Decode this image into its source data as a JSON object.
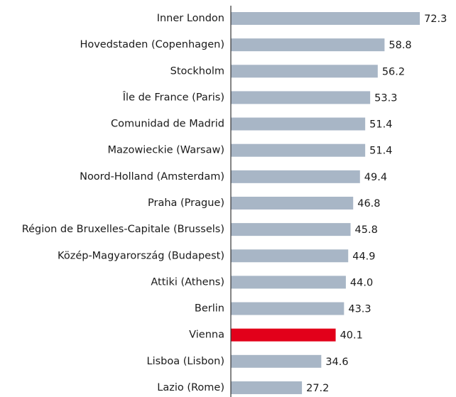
{
  "chart_data": {
    "type": "hbar",
    "categories": [
      "Inner London",
      "Hovedstaden (Copenhagen)",
      "Stockholm",
      "Île de France (Paris)",
      "Comunidad de Madrid",
      "Mazowieckie (Warsaw)",
      "Noord-Holland (Amsterdam)",
      "Praha (Prague)",
      "Région de Bruxelles-Capitale (Brussels)",
      "Közép-Magyarország (Budapest)",
      "Attiki (Athens)",
      "Berlin",
      "Vienna",
      "Lisboa (Lisbon)",
      "Lazio (Rome)"
    ],
    "values": [
      72.3,
      58.8,
      56.2,
      53.3,
      51.4,
      51.4,
      49.4,
      46.8,
      45.8,
      44.9,
      44.0,
      43.3,
      40.1,
      34.6,
      27.2
    ],
    "value_labels": [
      "72.3",
      "58.8",
      "56.2",
      "53.3",
      "51.4",
      "51.4",
      "49.4",
      "46.8",
      "45.8",
      "44.9",
      "44.0",
      "43.3",
      "40.1",
      "34.6",
      "27.2"
    ],
    "colors": [
      "#a8b6c6",
      "#a8b6c6",
      "#a8b6c6",
      "#a8b6c6",
      "#a8b6c6",
      "#a8b6c6",
      "#a8b6c6",
      "#a8b6c6",
      "#a8b6c6",
      "#a8b6c6",
      "#a8b6c6",
      "#a8b6c6",
      "#e2001a",
      "#a8b6c6",
      "#a8b6c6"
    ],
    "xlim": [
      0,
      75
    ]
  }
}
